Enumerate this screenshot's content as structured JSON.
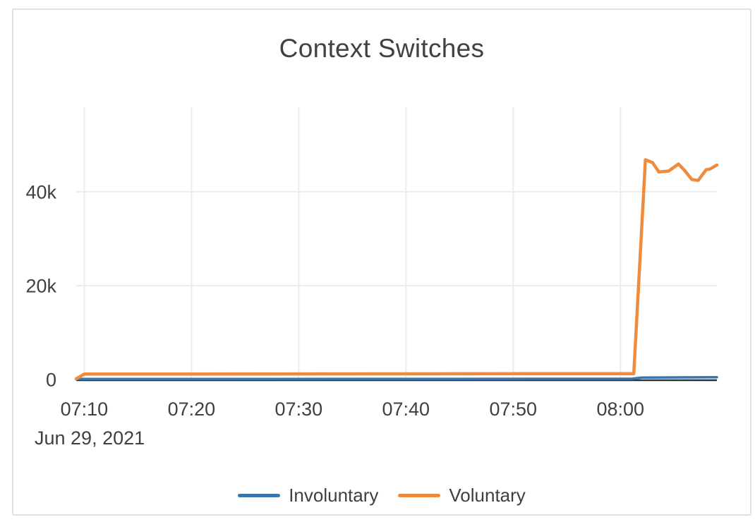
{
  "chart_data": {
    "type": "line",
    "title": "Context Switches",
    "x_axis": {
      "date_label": "Jun 29, 2021",
      "ticks": [
        "07:10",
        "07:20",
        "07:30",
        "07:40",
        "07:50",
        "08:00"
      ],
      "range": [
        "07:09:15",
        "08:09:00"
      ],
      "grid": true
    },
    "y_axis": {
      "ticks": [
        {
          "label": "0",
          "value": 0
        },
        {
          "label": "20k",
          "value": 20000
        },
        {
          "label": "40k",
          "value": 40000
        }
      ],
      "range": [
        0,
        58000
      ],
      "grid": true
    },
    "series": [
      {
        "name": "Involuntary",
        "color": "#3a76ad",
        "points": [
          [
            "07:09:15",
            100
          ],
          [
            "08:01:00",
            150
          ],
          [
            "08:02:00",
            400
          ],
          [
            "08:09:00",
            500
          ]
        ]
      },
      {
        "name": "Voluntary",
        "color": "#ef8b3c",
        "points": [
          [
            "07:09:15",
            150
          ],
          [
            "07:10:00",
            1150
          ],
          [
            "08:01:15",
            1250
          ],
          [
            "08:02:20",
            46800
          ],
          [
            "08:03:00",
            46200
          ],
          [
            "08:03:35",
            44200
          ],
          [
            "08:04:30",
            44400
          ],
          [
            "08:05:25",
            45900
          ],
          [
            "08:06:00",
            44500
          ],
          [
            "08:06:40",
            42600
          ],
          [
            "08:07:15",
            42400
          ],
          [
            "08:08:00",
            44700
          ],
          [
            "08:08:20",
            44800
          ],
          [
            "08:09:00",
            45700
          ]
        ]
      }
    ],
    "legend_position": "bottom"
  },
  "colors": {
    "grid": "#ececec",
    "baseline": "#26323c",
    "title_text": "#3f4245",
    "tick_text": "#3d4145",
    "card_border": "#dfe2e5",
    "background": "#ffffff"
  }
}
